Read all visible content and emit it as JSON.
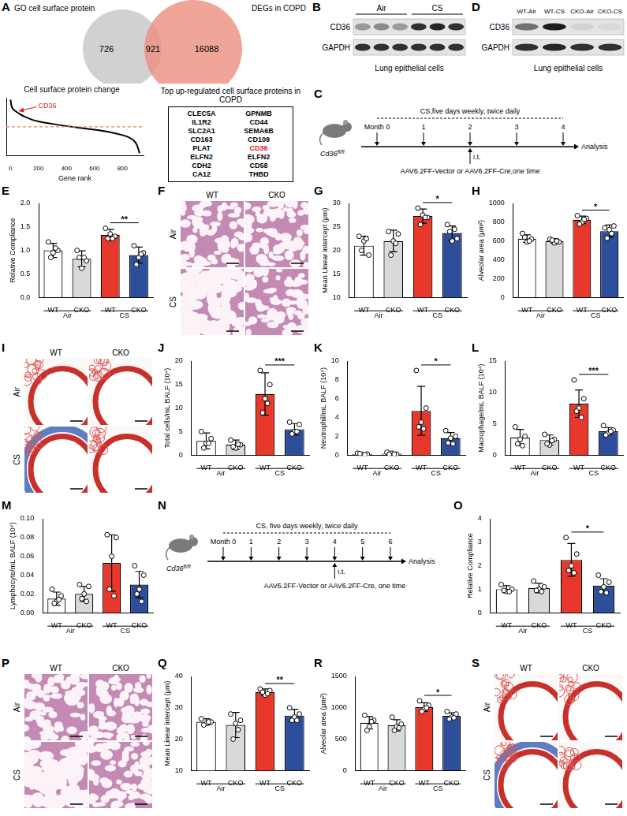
{
  "figure_panels": {
    "venn": {
      "panel": "A",
      "sets": [
        {
          "label": "GO cell surface protein",
          "only": 726,
          "color": "#c9c9c9"
        },
        {
          "label": "DEGs in COPD",
          "only": 16088,
          "color": "#ec8f80"
        }
      ],
      "overlap": 921
    },
    "gene_table": {
      "title": "Top up-regulated cell surface proteins in COPD",
      "rows": [
        [
          "CLEC5A",
          "GPNMB"
        ],
        [
          "IL1R2",
          "CD44"
        ],
        [
          "SLC2A1",
          "SEMA6B"
        ],
        [
          "CD163",
          "CD109"
        ],
        [
          "PLAT",
          "CD36"
        ],
        [
          "ELFN2",
          "ELFN2"
        ],
        [
          "CDH2",
          "CD58"
        ],
        [
          "CA12",
          "THBD"
        ]
      ],
      "highlight": "CD36",
      "highlight_color": "#e0201b"
    },
    "blots": [
      {
        "panel": "B",
        "groups": [
          {
            "label": "Air",
            "lanes": 3
          },
          {
            "label": "CS",
            "lanes": 3
          }
        ],
        "rows": [
          {
            "label": "CD36",
            "bands": [
              0.35,
              0.42,
              0.35,
              0.85,
              0.9,
              0.85
            ]
          },
          {
            "label": "GAPDH",
            "bands": [
              0.85,
              0.85,
              0.85,
              0.85,
              0.85,
              0.85
            ]
          }
        ],
        "caption": "Lung epithelial cells"
      },
      {
        "panel": "D",
        "lanes": [
          "WT-Air",
          "WT-CS",
          "CKO-Air",
          "CKO-CS"
        ],
        "rows": [
          {
            "label": "CD36",
            "bands": [
              0.55,
              0.95,
              0.08,
              0.05
            ]
          },
          {
            "label": "GAPDH",
            "bands": [
              0.85,
              0.9,
              0.85,
              0.85
            ]
          }
        ],
        "caption": "Lung epithelial cells"
      }
    ],
    "timelines": [
      {
        "panel": "C",
        "mouse": {
          "gene": "Cd36",
          "superscript": "fl/fl"
        },
        "exposure": "CS,five days weekly, twice daily",
        "months": [
          "Month 0",
          "1",
          "2",
          "3",
          "4"
        ],
        "end": "Analysis",
        "injection": {
          "month_index": 2,
          "route": "i.t.",
          "text": "AAV6.2FF-Vector or AAV6.2FF-Cre,one time"
        }
      },
      {
        "panel": "N",
        "mouse": {
          "gene": "Cd36",
          "superscript": "fl/fl"
        },
        "exposure": "CS, five days weekly, twice daily",
        "months": [
          "Month 0",
          "1",
          "2",
          "3",
          "4",
          "5",
          "6"
        ],
        "end": "Analysis",
        "injection": {
          "month_index": 4,
          "route": "i.t.",
          "text": "AAV6.2FF-Vector or AAV6.2FF-Cre, one time"
        }
      }
    ],
    "images": [
      {
        "panel": "F",
        "columns": [
          "WT",
          "CKO"
        ],
        "rows": [
          "Air",
          "CS"
        ]
      },
      {
        "panel": "I",
        "columns": [
          "WT",
          "CKO"
        ],
        "rows": [
          "Air",
          "CS"
        ]
      },
      {
        "panel": "P",
        "columns": [
          "WT",
          "CKO"
        ],
        "rows": [
          "Air",
          "CS"
        ]
      },
      {
        "panel": "S",
        "columns": [
          "WT",
          "CKO"
        ],
        "rows": [
          "Air",
          "CS"
        ]
      }
    ]
  },
  "chart_data": [
    {
      "panel": "A",
      "type": "line",
      "title": "Cell surface protein change",
      "x_label": "Gene rank",
      "x": [
        0,
        5,
        10,
        20,
        40,
        70,
        100,
        150,
        200,
        300,
        400,
        500,
        600,
        700,
        800,
        850,
        880,
        900,
        910,
        921
      ],
      "values": [
        8.5,
        7.2,
        6.4,
        5.8,
        5.2,
        4.4,
        3.8,
        3.0,
        2.5,
        1.8,
        1.2,
        0.7,
        0.2,
        -0.4,
        -1.3,
        -2.0,
        -2.8,
        -3.8,
        -4.8,
        -6.3
      ],
      "color": "#000000",
      "xlim": [
        -30,
        950
      ],
      "xticks": [
        0,
        200,
        400,
        600,
        800
      ],
      "ylim": [
        -7,
        9
      ],
      "tick_labels": "x",
      "hline": {
        "value": 1,
        "color": "#e8836b",
        "line_style": "dashed"
      },
      "annotation": {
        "text": "CD36",
        "x": 40,
        "y": 5.2,
        "color": "#e0201b"
      }
    },
    {
      "panel": "E",
      "type": "bar",
      "categories": [
        "WT",
        "CKO",
        "WT",
        "CKO"
      ],
      "groups": [
        {
          "label": "Air",
          "span": [
            0,
            1
          ]
        },
        {
          "label": "CS",
          "span": [
            2,
            3
          ]
        }
      ],
      "y_label": "Relative Compliance",
      "ylim": [
        0,
        2
      ],
      "yticks": [
        {
          "value": 0,
          "label": "0.0"
        },
        0.5,
        {
          "value": 1,
          "label": "1.0"
        },
        1.5,
        {
          "value": 2,
          "label": "2.0"
        }
      ],
      "values": [
        1.0,
        0.82,
        1.33,
        0.9
      ],
      "errors": [
        0.15,
        0.17,
        0.12,
        0.17
      ],
      "points": [
        [
          1.18,
          1.0,
          0.95,
          0.85,
          1.05
        ],
        [
          1.0,
          0.78,
          0.62,
          0.85,
          0.85
        ],
        [
          1.47,
          1.3,
          1.35,
          1.25,
          1.25
        ],
        [
          1.1,
          0.95,
          0.85,
          0.7,
          0.92
        ]
      ],
      "colors": [
        "#ffffff",
        "#d9d9d9",
        "#e8382b",
        "#2c4e9b"
      ],
      "significance": [
        {
          "span": [
            2,
            3
          ],
          "label": "**"
        }
      ]
    },
    {
      "panel": "G",
      "type": "bar",
      "categories": [
        "WT",
        "CKO",
        "WT",
        "CKO"
      ],
      "groups": [
        {
          "label": "Air",
          "span": [
            0,
            1
          ]
        },
        {
          "label": "CS",
          "span": [
            2,
            3
          ]
        }
      ],
      "y_label": "Mean Linear intercept (μm)",
      "ylim": [
        10,
        30
      ],
      "yticks": [
        10,
        15,
        20,
        25,
        30
      ],
      "values": [
        21,
        22,
        27.3,
        23.7
      ],
      "errors": [
        2,
        2.3,
        1.5,
        1.5
      ],
      "points": [
        [
          23,
          19,
          22,
          20,
          22.5
        ],
        [
          24,
          23.5,
          22,
          19,
          21.5
        ],
        [
          29,
          27,
          27.5,
          25.5,
          27
        ],
        [
          25.5,
          22.5,
          22,
          24,
          24.5
        ]
      ],
      "colors": [
        "#ffffff",
        "#d9d9d9",
        "#e8382b",
        "#2c4e9b"
      ],
      "significance": [
        {
          "span": [
            2,
            3
          ],
          "label": "*"
        }
      ]
    },
    {
      "panel": "H",
      "type": "bar",
      "categories": [
        "WT",
        "CKO",
        "WT",
        "CKO"
      ],
      "groups": [
        {
          "label": "Air",
          "span": [
            0,
            1
          ]
        },
        {
          "label": "CS",
          "span": [
            2,
            3
          ]
        }
      ],
      "y_label": "Alveolar area (μm²)",
      "ylim": [
        0,
        1000
      ],
      "yticks": [
        0,
        200,
        400,
        600,
        800,
        1000
      ],
      "values": [
        625,
        600,
        825,
        705
      ],
      "errors": [
        40,
        25,
        40,
        65
      ],
      "points": [
        [
          680,
          620,
          590,
          640,
          600
        ],
        [
          620,
          590,
          580,
          610,
          600
        ],
        [
          870,
          840,
          800,
          780,
          830
        ],
        [
          740,
          760,
          720,
          630,
          680
        ]
      ],
      "colors": [
        "#ffffff",
        "#d9d9d9",
        "#e8382b",
        "#2c4e9b"
      ],
      "significance": [
        {
          "span": [
            2,
            3
          ],
          "label": "*"
        }
      ]
    },
    {
      "panel": "J",
      "type": "bar",
      "categories": [
        "WT",
        "CKO",
        "WT",
        "CKO"
      ],
      "groups": [
        {
          "label": "Air",
          "span": [
            0,
            1
          ]
        },
        {
          "label": "CS",
          "span": [
            2,
            3
          ]
        }
      ],
      "y_label": "Total cells/mL BALF (10⁴)",
      "ylim": [
        0,
        20
      ],
      "yticks": [
        0,
        5,
        10,
        15,
        20
      ],
      "values": [
        3,
        2.2,
        13,
        5.5
      ],
      "errors": [
        1.7,
        1.0,
        4.5,
        1.2
      ],
      "points": [
        [
          5,
          3.5,
          2.5,
          1.5,
          2.5
        ],
        [
          3.2,
          2.2,
          1.5,
          1.8,
          2.3
        ],
        [
          18,
          15,
          12,
          9,
          11
        ],
        [
          7,
          6.5,
          5,
          4.5,
          5
        ]
      ],
      "colors": [
        "#ffffff",
        "#d9d9d9",
        "#e8382b",
        "#2c4e9b"
      ],
      "significance": [
        {
          "span": [
            2,
            3
          ],
          "label": "***"
        }
      ]
    },
    {
      "panel": "K",
      "type": "bar",
      "categories": [
        "WT",
        "CKO",
        "WT",
        "CKO"
      ],
      "groups": [
        {
          "label": "Air",
          "span": [
            0,
            1
          ]
        },
        {
          "label": "CS",
          "span": [
            2,
            3
          ]
        }
      ],
      "y_label": "Neutrophil/mL BALF (10⁴)",
      "ylim": [
        0,
        10
      ],
      "yticks": [
        0,
        2,
        4,
        6,
        8,
        10
      ],
      "values": [
        0.1,
        0.15,
        4.7,
        1.8
      ],
      "errors": [
        0.08,
        0.1,
        2.6,
        0.6
      ],
      "points": [
        [
          0.2,
          0.1,
          0.05,
          0.15,
          0.05
        ],
        [
          0.3,
          0.1,
          0.2,
          0.1,
          0.1
        ],
        [
          9,
          5,
          3.5,
          3,
          2.8
        ],
        [
          2.6,
          2,
          1.8,
          1.3,
          1.2
        ]
      ],
      "colors": [
        "#ffffff",
        "#d9d9d9",
        "#e8382b",
        "#2c4e9b"
      ],
      "significance": [
        {
          "span": [
            2,
            3
          ],
          "label": "*"
        }
      ]
    },
    {
      "panel": "L",
      "type": "bar",
      "categories": [
        "WT",
        "CKO",
        "WT",
        "CKO"
      ],
      "groups": [
        {
          "label": "Air",
          "span": [
            0,
            1
          ]
        },
        {
          "label": "CS",
          "span": [
            2,
            3
          ]
        }
      ],
      "y_label": "Macrophage/mL BALF (10⁴)",
      "ylim": [
        0,
        15
      ],
      "yticks": [
        0,
        5,
        10,
        15
      ],
      "values": [
        2.8,
        2.4,
        8.2,
        3.8
      ],
      "errors": [
        1.3,
        0.8,
        2.2,
        0.6
      ],
      "points": [
        [
          4.5,
          3,
          2.5,
          1.8,
          1.5
        ],
        [
          3.3,
          2.5,
          1.6,
          1.8,
          2.3
        ],
        [
          12,
          9,
          7.5,
          7,
          6
        ],
        [
          4.7,
          4,
          3.5,
          3.2,
          3.8
        ]
      ],
      "colors": [
        "#ffffff",
        "#d9d9d9",
        "#e8382b",
        "#2c4e9b"
      ],
      "significance": [
        {
          "span": [
            2,
            3
          ],
          "label": "***"
        }
      ]
    },
    {
      "panel": "M",
      "type": "bar",
      "categories": [
        "WT",
        "CKO",
        "WT",
        "CKO"
      ],
      "groups": [
        {
          "label": "Air",
          "span": [
            0,
            1
          ]
        },
        {
          "label": "CS",
          "span": [
            2,
            3
          ]
        }
      ],
      "y_label": "Lymphocyte/mL BALF (10⁴)",
      "ylim": [
        0,
        0.1
      ],
      "yticks": [
        {
          "value": 0,
          "label": "0.00"
        },
        0.02,
        0.04,
        0.06,
        0.08,
        {
          "value": 0.1,
          "label": "0.10"
        }
      ],
      "values": [
        0.015,
        0.02,
        0.053,
        0.03
      ],
      "errors": [
        0.007,
        0.008,
        0.03,
        0.014
      ],
      "points": [
        [
          0.025,
          0.018,
          0.012,
          0.01,
          0.014
        ],
        [
          0.03,
          0.028,
          0.02,
          0.015,
          0.012
        ],
        [
          0.083,
          0.08,
          0.06,
          0.025,
          0.018
        ],
        [
          0.05,
          0.04,
          0.025,
          0.02,
          0.012
        ]
      ],
      "colors": [
        "#ffffff",
        "#d9d9d9",
        "#e8382b",
        "#2c4e9b"
      ]
    },
    {
      "panel": "O",
      "type": "bar",
      "categories": [
        "WT",
        "CKO",
        "WT",
        "CKO"
      ],
      "groups": [
        {
          "label": "Air",
          "span": [
            0,
            1
          ]
        },
        {
          "label": "CS",
          "span": [
            2,
            3
          ]
        }
      ],
      "y_label": "Relative Compliance",
      "ylim": [
        0,
        4
      ],
      "yticks": [
        0,
        1,
        2,
        3,
        4
      ],
      "values": [
        1.0,
        1.05,
        2.25,
        1.15
      ],
      "errors": [
        0.15,
        0.2,
        0.7,
        0.3
      ],
      "points": [
        [
          1.2,
          1.0,
          0.9,
          0.95,
          0.9
        ],
        [
          1.35,
          1.1,
          1.0,
          0.95,
          0.9
        ],
        [
          3.2,
          2.5,
          2.0,
          1.8,
          1.7
        ],
        [
          1.6,
          1.3,
          1.1,
          0.9,
          0.85
        ]
      ],
      "colors": [
        "#ffffff",
        "#d9d9d9",
        "#e8382b",
        "#2c4e9b"
      ],
      "significance": [
        {
          "span": [
            2,
            3
          ],
          "label": "*"
        }
      ]
    },
    {
      "panel": "Q",
      "type": "bar",
      "categories": [
        "WT",
        "CKO",
        "WT",
        "CKO"
      ],
      "groups": [
        {
          "label": "Air",
          "span": [
            0,
            1
          ]
        },
        {
          "label": "CS",
          "span": [
            2,
            3
          ]
        }
      ],
      "y_label": "Mean Linear intercept (μm)",
      "ylim": [
        10,
        40
      ],
      "yticks": [
        10,
        20,
        30,
        40
      ],
      "values": [
        25.5,
        24.5,
        35,
        27.5
      ],
      "errors": [
        1,
        4,
        1,
        2
      ],
      "points": [
        [
          26.5,
          25.5,
          25,
          24.5,
          25.5
        ],
        [
          28,
          26,
          25,
          20,
          23
        ],
        [
          36,
          35.5,
          34,
          35,
          34.5
        ],
        [
          30,
          28,
          27,
          26,
          26
        ]
      ],
      "colors": [
        "#ffffff",
        "#d9d9d9",
        "#e8382b",
        "#2c4e9b"
      ],
      "significance": [
        {
          "span": [
            2,
            3
          ],
          "label": "**"
        }
      ]
    },
    {
      "panel": "R",
      "type": "bar",
      "categories": [
        "WT",
        "CKO",
        "WT",
        "CKO"
      ],
      "groups": [
        {
          "label": "Air",
          "span": [
            0,
            1
          ]
        },
        {
          "label": "CS",
          "span": [
            2,
            3
          ]
        }
      ],
      "y_label": "Alveolar area (μm²)",
      "ylim": [
        0,
        1500
      ],
      "yticks": [
        0,
        500,
        1000,
        1500
      ],
      "values": [
        760,
        720,
        1010,
        870
      ],
      "errors": [
        100,
        90,
        70,
        50
      ],
      "points": [
        [
          880,
          800,
          700,
          640,
          780
        ],
        [
          850,
          740,
          700,
          640,
          680
        ],
        [
          1110,
          1040,
          980,
          940,
          1000
        ],
        [
          940,
          900,
          850,
          820,
          840
        ]
      ],
      "colors": [
        "#ffffff",
        "#d9d9d9",
        "#e8382b",
        "#2c4e9b"
      ],
      "significance": [
        {
          "span": [
            2,
            3
          ],
          "label": "*"
        }
      ]
    }
  ]
}
